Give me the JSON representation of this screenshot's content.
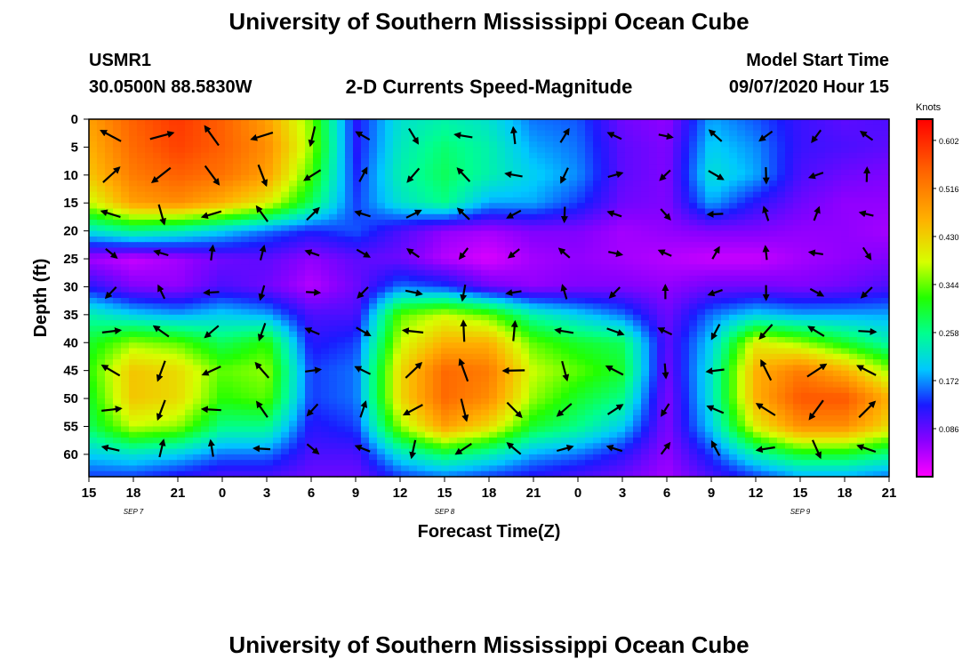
{
  "header": {
    "title": "University of Southern Mississippi Ocean Cube",
    "station_id": "USMR1",
    "station_coords": "30.0500N 88.5830W",
    "subtitle": "2-D Currents Speed-Magnitude",
    "model_label": "Model Start Time",
    "model_start": "09/07/2020 Hour 15"
  },
  "footer": {
    "title": "University of Southern Mississippi Ocean Cube"
  },
  "colors": {
    "scale_low": "#ff00ff",
    "scale_mid": "#00ff00",
    "scale_high": "#ff0000",
    "arrows": "#000000"
  },
  "chart_data": {
    "type": "heatmap",
    "xlabel": "Forecast Time(Z)",
    "ylabel": "Depth (ft)",
    "x_tick_labels": [
      "15",
      "18",
      "21",
      "0",
      "3",
      "6",
      "9",
      "12",
      "15",
      "18",
      "21",
      "0",
      "3",
      "6",
      "9",
      "12",
      "15",
      "18",
      "21"
    ],
    "date_labels": [
      "SEP 7",
      "SEP 8",
      "SEP 9"
    ],
    "y_tick_labels": [
      "0",
      "5",
      "10",
      "15",
      "20",
      "25",
      "30",
      "35",
      "40",
      "45",
      "50",
      "55",
      "60"
    ],
    "ylim": [
      0,
      64
    ],
    "colorbar": {
      "unit": "Knots",
      "tick_labels": [
        "0.602",
        "0.516",
        "0.430",
        "0.344",
        "0.258",
        "0.172",
        "0.086"
      ],
      "range": [
        0.0,
        0.64
      ]
    },
    "speed_grid": {
      "x_hours": [
        0,
        3,
        6,
        9,
        12,
        15,
        18,
        21,
        24,
        27,
        30,
        33,
        36,
        39,
        42,
        45,
        48,
        51,
        54
      ],
      "depth_ft": [
        0,
        5,
        10,
        15,
        20,
        25,
        30,
        35,
        40,
        45,
        50,
        55,
        60,
        64
      ],
      "speed": [
        [
          0.48,
          0.55,
          0.59,
          0.55,
          0.48,
          0.35,
          0.12,
          0.22,
          0.24,
          0.22,
          0.16,
          0.15,
          0.08,
          0.06,
          0.18,
          0.15,
          0.11,
          0.09,
          0.1
        ],
        [
          0.46,
          0.54,
          0.58,
          0.55,
          0.5,
          0.36,
          0.12,
          0.23,
          0.27,
          0.24,
          0.18,
          0.16,
          0.09,
          0.07,
          0.2,
          0.17,
          0.11,
          0.1,
          0.09
        ],
        [
          0.44,
          0.52,
          0.55,
          0.53,
          0.48,
          0.33,
          0.13,
          0.24,
          0.28,
          0.24,
          0.2,
          0.17,
          0.09,
          0.07,
          0.22,
          0.18,
          0.1,
          0.08,
          0.07
        ],
        [
          0.38,
          0.48,
          0.5,
          0.46,
          0.4,
          0.28,
          0.14,
          0.22,
          0.26,
          0.18,
          0.18,
          0.14,
          0.08,
          0.07,
          0.18,
          0.12,
          0.08,
          0.06,
          0.06
        ],
        [
          0.22,
          0.26,
          0.24,
          0.2,
          0.16,
          0.13,
          0.15,
          0.1,
          0.06,
          0.05,
          0.07,
          0.07,
          0.05,
          0.06,
          0.07,
          0.07,
          0.06,
          0.06,
          0.05
        ],
        [
          0.05,
          0.03,
          0.05,
          0.08,
          0.09,
          0.06,
          0.09,
          0.08,
          0.04,
          0.02,
          0.05,
          0.06,
          0.05,
          0.04,
          0.03,
          0.03,
          0.05,
          0.06,
          0.07
        ],
        [
          0.12,
          0.07,
          0.06,
          0.1,
          0.08,
          0.04,
          0.08,
          0.16,
          0.14,
          0.08,
          0.06,
          0.07,
          0.07,
          0.06,
          0.08,
          0.08,
          0.07,
          0.08,
          0.1
        ],
        [
          0.24,
          0.2,
          0.18,
          0.2,
          0.18,
          0.1,
          0.1,
          0.34,
          0.38,
          0.34,
          0.24,
          0.2,
          0.16,
          0.08,
          0.16,
          0.2,
          0.18,
          0.18,
          0.18
        ],
        [
          0.3,
          0.36,
          0.34,
          0.28,
          0.32,
          0.12,
          0.14,
          0.38,
          0.46,
          0.46,
          0.34,
          0.3,
          0.28,
          0.09,
          0.2,
          0.4,
          0.36,
          0.3,
          0.24
        ],
        [
          0.32,
          0.44,
          0.42,
          0.34,
          0.36,
          0.14,
          0.16,
          0.42,
          0.54,
          0.52,
          0.38,
          0.34,
          0.3,
          0.08,
          0.22,
          0.46,
          0.52,
          0.46,
          0.36
        ],
        [
          0.3,
          0.44,
          0.42,
          0.32,
          0.34,
          0.14,
          0.16,
          0.42,
          0.54,
          0.5,
          0.36,
          0.3,
          0.26,
          0.07,
          0.22,
          0.46,
          0.56,
          0.56,
          0.46
        ],
        [
          0.28,
          0.38,
          0.36,
          0.26,
          0.26,
          0.12,
          0.14,
          0.36,
          0.48,
          0.42,
          0.3,
          0.26,
          0.2,
          0.07,
          0.2,
          0.4,
          0.5,
          0.5,
          0.42
        ],
        [
          0.2,
          0.22,
          0.2,
          0.16,
          0.16,
          0.1,
          0.1,
          0.22,
          0.28,
          0.24,
          0.18,
          0.16,
          0.12,
          0.06,
          0.14,
          0.24,
          0.3,
          0.3,
          0.26
        ],
        [
          0.14,
          0.14,
          0.12,
          0.1,
          0.1,
          0.08,
          0.08,
          0.14,
          0.16,
          0.14,
          0.12,
          0.1,
          0.08,
          0.05,
          0.1,
          0.14,
          0.18,
          0.18,
          0.16
        ]
      ]
    }
  }
}
